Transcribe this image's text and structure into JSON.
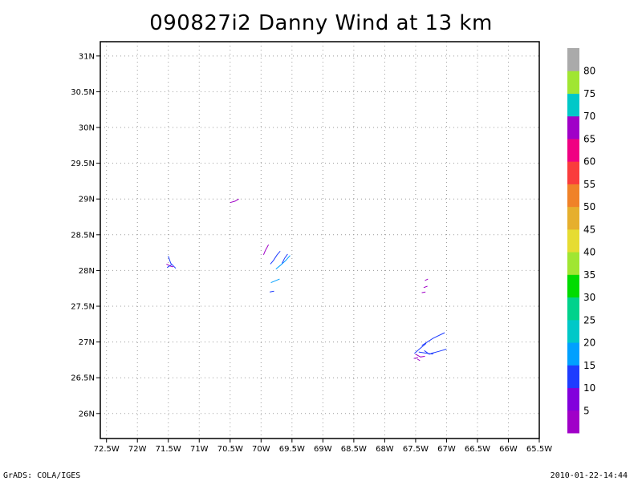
{
  "chart_data": {
    "type": "wind-barbs",
    "title": "090827i2 Danny Wind at 13 km",
    "x_axis": {
      "range": [
        -72.6,
        -65.5
      ],
      "ticks": [
        -72.5,
        -72,
        -71.5,
        -71,
        -70.5,
        -70,
        -69.5,
        -69,
        -68.5,
        -68,
        -67.5,
        -67,
        -66.5,
        -66,
        -65.5
      ],
      "tick_labels": [
        "72.5W",
        "72W",
        "71.5W",
        "71W",
        "70.5W",
        "70W",
        "69.5W",
        "69W",
        "68.5W",
        "68W",
        "67.5W",
        "67W",
        "66.5W",
        "66W",
        "65.5W"
      ]
    },
    "y_axis": {
      "range": [
        25.65,
        31.2
      ],
      "ticks": [
        26,
        26.5,
        27,
        27.5,
        28,
        28.5,
        29,
        29.5,
        30,
        30.5,
        31
      ],
      "tick_labels": [
        "26N",
        "26.5N",
        "27N",
        "27.5N",
        "28N",
        "28.5N",
        "29N",
        "29.5N",
        "30N",
        "30.5N",
        "31N"
      ]
    },
    "grid": true,
    "colorbar": {
      "labels": [
        "5",
        "10",
        "15",
        "20",
        "25",
        "30",
        "35",
        "40",
        "45",
        "50",
        "55",
        "60",
        "65",
        "70",
        "75",
        "80"
      ],
      "colors": [
        "#a000c8",
        "#8200dc",
        "#1e3cff",
        "#00a0ff",
        "#00c8c8",
        "#00d28c",
        "#00dc00",
        "#a0e632",
        "#e6dc32",
        "#e6af2d",
        "#f08228",
        "#fa3c3c",
        "#f00082",
        "#a000c8",
        "#00c8c8",
        "#a0e632",
        "#aaaaaa"
      ]
    },
    "barbs": [
      {
        "color": "#1e3cff",
        "points": [
          [
            -71.5,
            28.2
          ],
          [
            -71.46,
            28.1
          ],
          [
            -71.38,
            28.03
          ]
        ]
      },
      {
        "color": "#a000c8",
        "points": [
          [
            -71.53,
            28.09
          ],
          [
            -71.46,
            28.06
          ],
          [
            -71.42,
            28.05
          ]
        ]
      },
      {
        "color": "#1e3cff",
        "points": [
          [
            -71.52,
            28.04
          ],
          [
            -71.45,
            28.08
          ]
        ]
      },
      {
        "color": "#a000c8",
        "points": [
          [
            -70.5,
            28.95
          ],
          [
            -70.42,
            28.97
          ],
          [
            -70.36,
            29.0
          ]
        ]
      },
      {
        "color": "#a000c8",
        "points": [
          [
            -69.88,
            28.36
          ],
          [
            -69.93,
            28.28
          ],
          [
            -69.96,
            28.22
          ]
        ]
      },
      {
        "color": "#1e3cff",
        "points": [
          [
            -69.85,
            28.09
          ],
          [
            -69.8,
            28.14
          ],
          [
            -69.74,
            28.22
          ],
          [
            -69.69,
            28.27
          ]
        ]
      },
      {
        "color": "#00a0ff",
        "points": [
          [
            -69.76,
            28.02
          ],
          [
            -69.69,
            28.07
          ],
          [
            -69.6,
            28.14
          ],
          [
            -69.53,
            28.21
          ]
        ]
      },
      {
        "color": "#1e3cff",
        "points": [
          [
            -69.66,
            28.1
          ],
          [
            -69.62,
            28.17
          ],
          [
            -69.57,
            28.23
          ]
        ]
      },
      {
        "color": "#00a0ff",
        "points": [
          [
            -69.84,
            27.83
          ],
          [
            -69.7,
            27.88
          ]
        ]
      },
      {
        "color": "#1e3cff",
        "points": [
          [
            -69.86,
            27.7
          ],
          [
            -69.79,
            27.71
          ]
        ]
      },
      {
        "color": "#a000c8",
        "points": [
          [
            -67.3,
            27.88
          ],
          [
            -67.35,
            27.86
          ]
        ]
      },
      {
        "color": "#a000c8",
        "points": [
          [
            -67.31,
            27.78
          ],
          [
            -67.37,
            27.76
          ]
        ]
      },
      {
        "color": "#a000c8",
        "points": [
          [
            -67.34,
            27.7
          ],
          [
            -67.4,
            27.69
          ]
        ]
      },
      {
        "color": "#1e3cff",
        "points": [
          [
            -67.4,
            26.95
          ],
          [
            -67.22,
            27.05
          ],
          [
            -67.03,
            27.13
          ]
        ]
      },
      {
        "color": "#1e3cff",
        "points": [
          [
            -67.52,
            26.84
          ],
          [
            -67.44,
            26.9
          ],
          [
            -67.33,
            26.98
          ]
        ]
      },
      {
        "color": "#1e3cff",
        "points": [
          [
            -67.25,
            26.84
          ],
          [
            -67.12,
            26.87
          ],
          [
            -67.0,
            26.9
          ]
        ]
      },
      {
        "color": "#1e3cff",
        "points": [
          [
            -67.45,
            26.86
          ],
          [
            -67.3,
            26.84
          ],
          [
            -67.22,
            26.83
          ]
        ]
      },
      {
        "color": "#a000c8",
        "points": [
          [
            -67.5,
            26.83
          ],
          [
            -67.42,
            26.79
          ],
          [
            -67.35,
            26.8
          ]
        ]
      },
      {
        "color": "#a000c8",
        "points": [
          [
            -67.53,
            26.77
          ],
          [
            -67.46,
            26.78
          ]
        ]
      },
      {
        "color": "#a000c8",
        "points": [
          [
            -67.47,
            26.76
          ],
          [
            -67.43,
            26.74
          ]
        ]
      },
      {
        "color": "#1e3cff",
        "points": [
          [
            -67.36,
            26.88
          ],
          [
            -67.28,
            26.83
          ],
          [
            -67.2,
            26.85
          ]
        ]
      }
    ]
  },
  "footer": {
    "left": "GrADS: COLA/IGES",
    "right": "2010-01-22-14:44"
  }
}
